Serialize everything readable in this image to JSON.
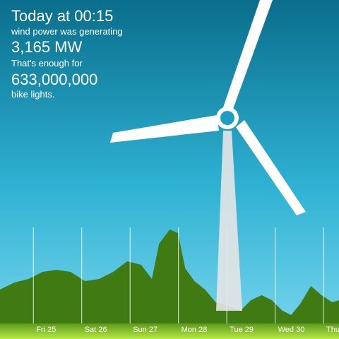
{
  "header": {
    "title": "Today at 00:15",
    "line1": "wind power was generating",
    "power": "3,165 MW",
    "line2": "That's enough for",
    "count": "633,000,000",
    "line3": "bike lights."
  },
  "chart_data": {
    "type": "area",
    "color": "#3f7a12",
    "grid": true,
    "x": [
      0.31,
      0.61,
      0.9,
      1.19,
      1.48,
      1.77,
      2.07,
      2.36,
      2.65,
      2.94,
      3.23,
      3.45,
      3.6,
      3.82,
      3.99,
      4.14,
      4.33,
      4.55,
      4.77,
      4.99,
      5.28,
      5.5,
      5.72,
      5.93,
      6.15,
      6.33,
      6.52,
      6.74,
      6.96,
      7.18,
      7.32
    ],
    "values": [
      48,
      58,
      63,
      73,
      76,
      73,
      60,
      63,
      73,
      88,
      83,
      63,
      113,
      133,
      128,
      78,
      60,
      48,
      30,
      26,
      18,
      33,
      40,
      33,
      18,
      12,
      28,
      53,
      40,
      30,
      33
    ],
    "xlim": [
      0.31,
      7.32
    ],
    "ylim": [
      0,
      140
    ],
    "xticks": [
      {
        "value": 1,
        "label": "Fri 25"
      },
      {
        "value": 2,
        "label": "Sat 26"
      },
      {
        "value": 3,
        "label": "Sun 27"
      },
      {
        "value": 4,
        "label": "Mon 28"
      },
      {
        "value": 5,
        "label": "Tue 29"
      },
      {
        "value": 6,
        "label": "Wed 30"
      },
      {
        "value": 7,
        "label": "Thu"
      }
    ]
  }
}
